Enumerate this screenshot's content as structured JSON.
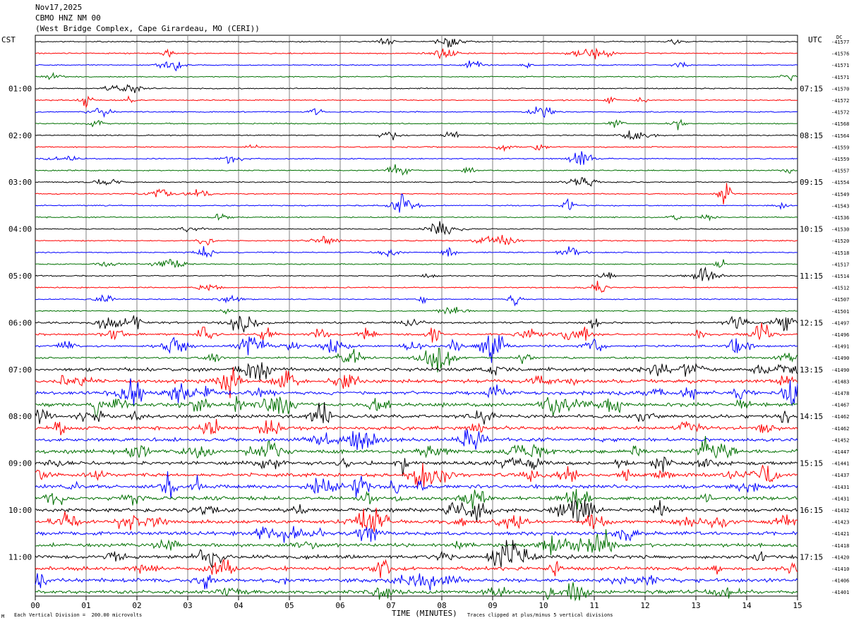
{
  "header": {
    "date": "Nov17,2025",
    "station": "CBMO HNZ NM 00",
    "location": "(West Bridge Complex, Cape Girardeau, MO (CERI))"
  },
  "labels": {
    "left_tz": "CST",
    "right_tz": "UTC",
    "dc": "DC",
    "xlabel": "TIME (MINUTES)",
    "footer_left": "Each Vertical Division =  200.00 microvolts",
    "footer_right": "Traces clipped at plus/minus 5 vertical divisions",
    "corner_mark": "M"
  },
  "colors": {
    "trace_cycle": [
      "#000000",
      "#ff0000",
      "#0000ff",
      "#007000"
    ],
    "grid": "#808080"
  },
  "chart_data": {
    "type": "line",
    "title": "",
    "xlabel": "TIME (MINUTES)",
    "ylabel": "",
    "xlim": [
      0,
      15
    ],
    "x_ticks": [
      "00",
      "01",
      "02",
      "03",
      "04",
      "05",
      "06",
      "07",
      "08",
      "09",
      "10",
      "11",
      "12",
      "13",
      "14",
      "15"
    ],
    "trace_interval_minutes": 15,
    "trace_count": 48,
    "left_hour_labels": [
      "01:00",
      "02:00",
      "03:00",
      "04:00",
      "05:00",
      "06:00",
      "07:00",
      "08:00",
      "09:00",
      "10:00",
      "11:00"
    ],
    "right_hour_labels": [
      "07:15",
      "08:15",
      "09:15",
      "10:15",
      "11:15",
      "12:15",
      "13:15",
      "14:15",
      "15:15",
      "16:15",
      "17:15"
    ],
    "dc_offsets": [
      "-41577",
      "-41576",
      "-41571",
      "-41571",
      "-41570",
      "-41572",
      "-41572",
      "-41568",
      "-41564",
      "-41559",
      "-41559",
      "-41557",
      "-41554",
      "-41549",
      "-41543",
      "-41536",
      "-41530",
      "-41520",
      "-41518",
      "-41517",
      "-41514",
      "-41512",
      "-41507",
      "-41501",
      "-41497",
      "-41496",
      "-41491",
      "-41490",
      "-41490",
      "-41483",
      "-41478",
      "-41467",
      "-41462",
      "-41462",
      "-41452",
      "-41447",
      "-41441",
      "-41437",
      "-41431",
      "-41431",
      "-41432",
      "-41423",
      "-41421",
      "-41418",
      "-41420",
      "-41410",
      "-41406",
      "-41401"
    ],
    "grid": true
  }
}
